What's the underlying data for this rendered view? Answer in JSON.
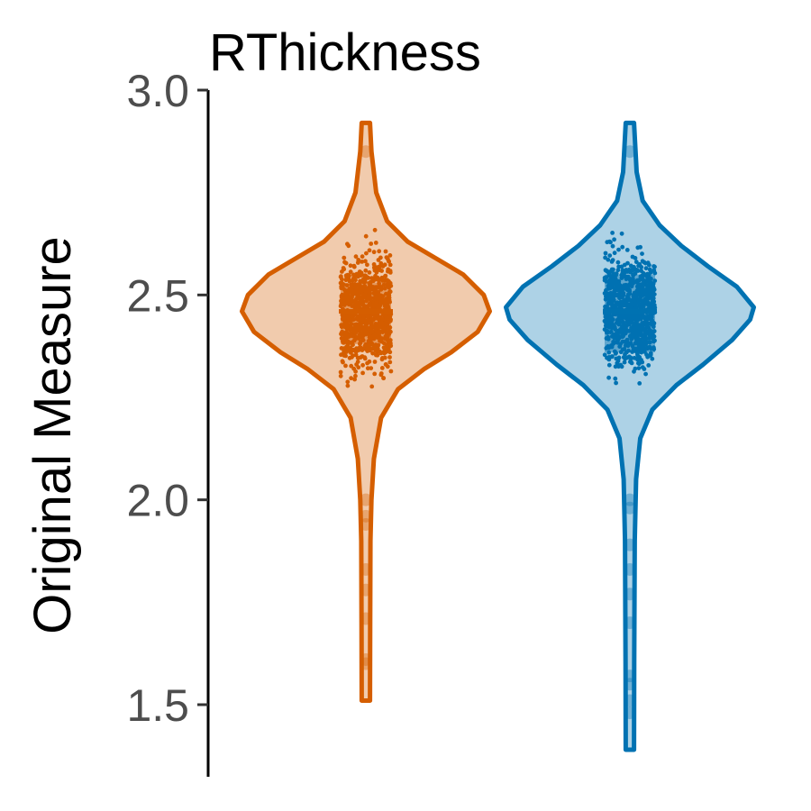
{
  "chart_data": {
    "type": "violin",
    "title": "RThickness",
    "xlabel": "",
    "ylabel": "Original Measure",
    "ylim": [
      1.3,
      3.0
    ],
    "yticks": [
      "1.5",
      "2.0",
      "2.5",
      "3.0"
    ],
    "y_tick_values": [
      1.5,
      2.0,
      2.5,
      3.0
    ],
    "grid": false,
    "legend": "none",
    "series": [
      {
        "color": "#d55e00",
        "min": 1.51,
        "max": 2.92,
        "quartiles": [
          2.38,
          2.46,
          2.53
        ],
        "density": [
          [
            1.51,
            0.008
          ],
          [
            1.7,
            0.01
          ],
          [
            1.9,
            0.012
          ],
          [
            2.0,
            0.02
          ],
          [
            2.1,
            0.04
          ],
          [
            2.2,
            0.1
          ],
          [
            2.27,
            0.24
          ],
          [
            2.32,
            0.46
          ],
          [
            2.36,
            0.68
          ],
          [
            2.41,
            0.9
          ],
          [
            2.46,
            1.0
          ],
          [
            2.5,
            0.95
          ],
          [
            2.55,
            0.78
          ],
          [
            2.59,
            0.55
          ],
          [
            2.63,
            0.32
          ],
          [
            2.68,
            0.15
          ],
          [
            2.75,
            0.06
          ],
          [
            2.85,
            0.02
          ],
          [
            2.92,
            0.008
          ]
        ],
        "outliers": [
          1.6,
          1.61,
          1.71,
          1.78,
          1.83,
          1.94,
          1.96,
          2.0,
          2.85
        ]
      },
      {
        "color": "#0072b2",
        "min": 1.39,
        "max": 2.92,
        "quartiles": [
          2.36,
          2.46,
          2.55
        ],
        "density": [
          [
            1.39,
            0.008
          ],
          [
            1.6,
            0.01
          ],
          [
            1.9,
            0.014
          ],
          [
            2.05,
            0.025
          ],
          [
            2.15,
            0.06
          ],
          [
            2.22,
            0.16
          ],
          [
            2.28,
            0.36
          ],
          [
            2.33,
            0.58
          ],
          [
            2.39,
            0.82
          ],
          [
            2.44,
            0.97
          ],
          [
            2.47,
            1.0
          ],
          [
            2.52,
            0.86
          ],
          [
            2.57,
            0.62
          ],
          [
            2.62,
            0.4
          ],
          [
            2.67,
            0.22
          ],
          [
            2.73,
            0.08
          ],
          [
            2.8,
            0.03
          ],
          [
            2.92,
            0.008
          ]
        ],
        "outliers": [
          1.48,
          1.51,
          1.55,
          1.57,
          1.7,
          1.77,
          1.83,
          1.89,
          1.98,
          2.0,
          2.85
        ]
      }
    ]
  }
}
